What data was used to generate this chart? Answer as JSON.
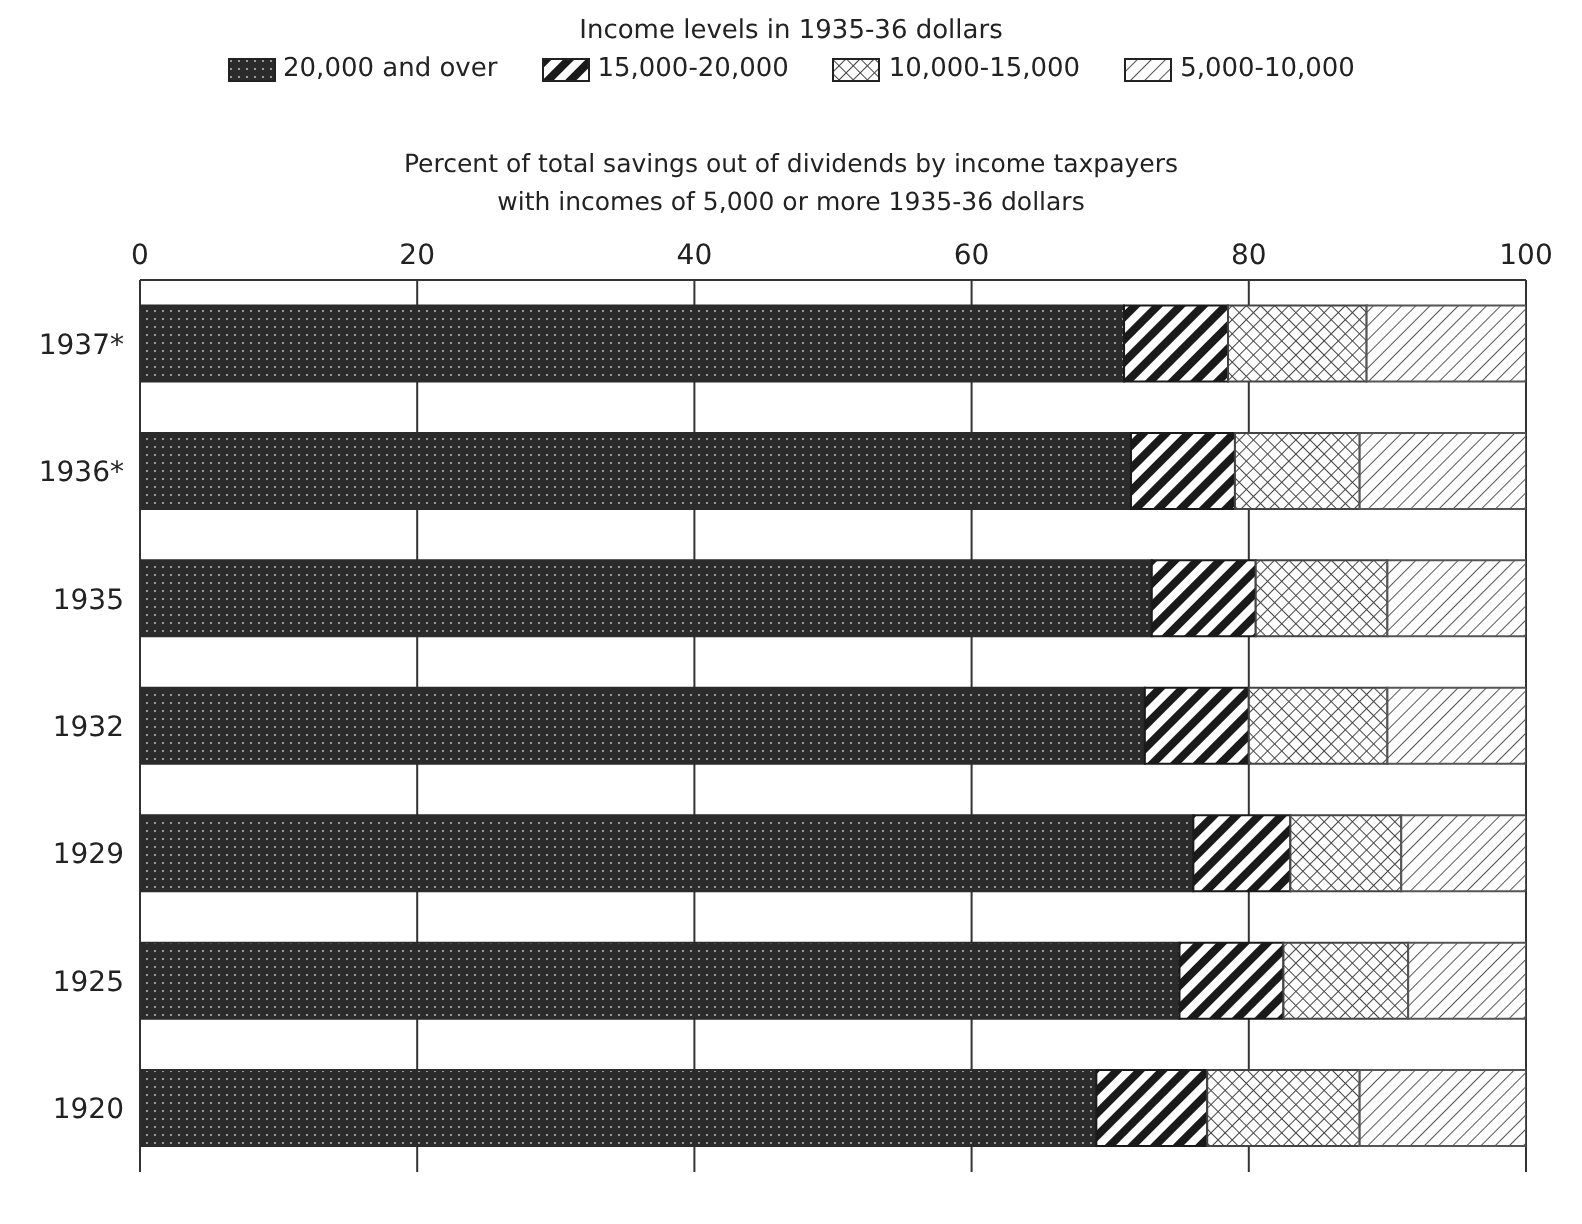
{
  "chart_data": {
    "type": "bar",
    "orientation": "horizontal",
    "stacked": true,
    "title": "Percent of total savings out of dividends by income taxpayers\nwith incomes of 5,000 or more 1935-36 dollars",
    "legend_title": "Income levels in 1935-36 dollars",
    "categories": [
      "1937*",
      "1936*",
      "1935",
      "1932",
      "1929",
      "1925",
      "1920"
    ],
    "series": [
      {
        "name": "20,000 and over",
        "color": "#2b2b2b",
        "values": [
          71,
          71.5,
          73,
          72.5,
          76,
          75,
          69
        ]
      },
      {
        "name": "15,000-20,000",
        "color": "#1a1a1a",
        "values": [
          7.5,
          7.5,
          7.5,
          7.5,
          7,
          7.5,
          8
        ]
      },
      {
        "name": "10,000-15,000",
        "color": "#444444",
        "values": [
          10,
          9,
          9.5,
          10,
          8,
          9,
          11
        ]
      },
      {
        "name": "5,000-10,000",
        "color": "#555555",
        "values": [
          11.5,
          12,
          10,
          10,
          9,
          8.5,
          12
        ]
      }
    ],
    "xlim": [
      0,
      100
    ],
    "xticks": [
      0,
      20,
      40,
      60,
      80,
      100
    ],
    "grid": "x",
    "legend": "top"
  }
}
